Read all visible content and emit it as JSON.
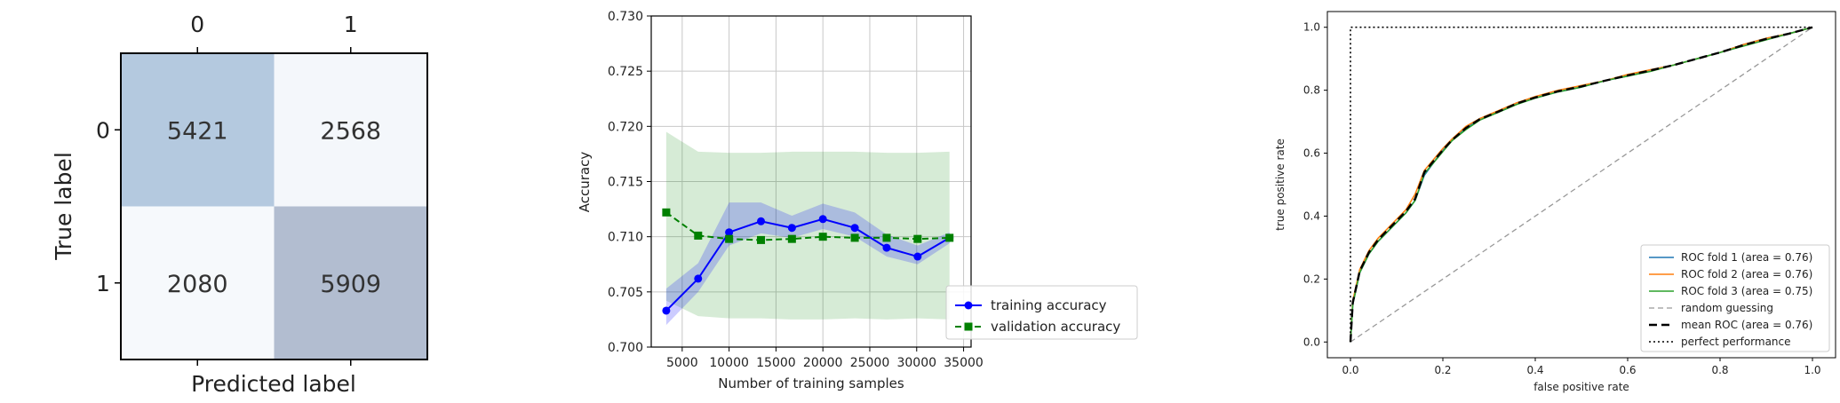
{
  "chart_data": [
    {
      "type": "heatmap",
      "title": "",
      "xlabel": "Predicted label",
      "ylabel": "True label",
      "x_categories": [
        "0",
        "1"
      ],
      "y_categories": [
        "0",
        "1"
      ],
      "values": [
        [
          5421,
          2568
        ],
        [
          2080,
          5909
        ]
      ],
      "colors": [
        "#b4c9df",
        "#f4f7fb",
        "#f6f9fc",
        "#b2bdd0"
      ],
      "grid": false
    },
    {
      "type": "line",
      "title": "",
      "xlabel": "Number of training samples",
      "ylabel": "Accuracy",
      "xlim": [
        1700,
        35800
      ],
      "ylim": [
        0.7,
        0.73
      ],
      "xticks": [
        5000,
        10000,
        15000,
        20000,
        25000,
        30000,
        35000
      ],
      "yticks": [
        0.7,
        0.705,
        0.71,
        0.715,
        0.72,
        0.725,
        0.73
      ],
      "ytick_labels": [
        "0.700",
        "0.705",
        "0.710",
        "0.715",
        "0.720",
        "0.725",
        "0.730"
      ],
      "grid": true,
      "legend_position": "lower-right",
      "x": [
        3300,
        6700,
        10000,
        13400,
        16700,
        20000,
        23400,
        26800,
        30100,
        33500
      ],
      "series": [
        {
          "name": "training accuracy",
          "color": "#0000ff",
          "marker": "circle",
          "linestyle": "solid",
          "values": [
            0.7033,
            0.7062,
            0.7104,
            0.7114,
            0.7108,
            0.7116,
            0.7108,
            0.709,
            0.7082,
            0.7099
          ],
          "band_lower": [
            0.702,
            0.705,
            0.7092,
            0.7103,
            0.7099,
            0.7107,
            0.71,
            0.7082,
            0.7075,
            0.7094
          ],
          "band_upper": [
            0.7053,
            0.7076,
            0.7131,
            0.7131,
            0.7119,
            0.713,
            0.7122,
            0.7102,
            0.7092,
            0.7104
          ]
        },
        {
          "name": "validation accuracy",
          "color": "#008000",
          "marker": "square",
          "linestyle": "dashed",
          "values": [
            0.7122,
            0.7101,
            0.7098,
            0.7097,
            0.7098,
            0.71,
            0.7099,
            0.7099,
            0.7098,
            0.7099
          ],
          "band_lower": [
            0.7042,
            0.7028,
            0.7026,
            0.7026,
            0.7025,
            0.7025,
            0.7026,
            0.7025,
            0.7026,
            0.7025
          ],
          "band_upper": [
            0.7195,
            0.7177,
            0.7176,
            0.7176,
            0.7177,
            0.7177,
            0.7177,
            0.7176,
            0.7176,
            0.7177
          ]
        }
      ]
    },
    {
      "type": "line",
      "title": "",
      "xlabel": "false positive rate",
      "ylabel": "true positive rate",
      "xlim": [
        -0.05,
        1.05
      ],
      "ylim": [
        -0.05,
        1.05
      ],
      "xticks": [
        0.0,
        0.2,
        0.4,
        0.6,
        0.8,
        1.0
      ],
      "yticks": [
        0.0,
        0.2,
        0.4,
        0.6,
        0.8,
        1.0
      ],
      "tick_labels": [
        "0.0",
        "0.2",
        "0.4",
        "0.6",
        "0.8",
        "1.0"
      ],
      "grid": false,
      "legend_position": "lower-right",
      "series": [
        {
          "name": "ROC fold 1 (area = 0.76)",
          "color": "#1f77b4",
          "linestyle": "solid",
          "x": [
            0.0,
            0.005,
            0.02,
            0.04,
            0.06,
            0.08,
            0.1,
            0.12,
            0.14,
            0.16,
            0.18,
            0.2,
            0.22,
            0.25,
            0.28,
            0.32,
            0.36,
            0.4,
            0.45,
            0.5,
            0.55,
            0.6,
            0.65,
            0.7,
            0.75,
            0.8,
            0.85,
            0.9,
            0.95,
            1.0
          ],
          "y": [
            0.0,
            0.12,
            0.22,
            0.28,
            0.32,
            0.35,
            0.38,
            0.41,
            0.45,
            0.53,
            0.57,
            0.61,
            0.64,
            0.68,
            0.71,
            0.73,
            0.76,
            0.775,
            0.795,
            0.81,
            0.83,
            0.845,
            0.865,
            0.88,
            0.9,
            0.92,
            0.945,
            0.965,
            0.98,
            1.0
          ]
        },
        {
          "name": "ROC fold 2 (area = 0.76)",
          "color": "#ff7f0e",
          "linestyle": "solid",
          "x": [
            0.0,
            0.005,
            0.02,
            0.04,
            0.06,
            0.08,
            0.1,
            0.12,
            0.14,
            0.16,
            0.18,
            0.2,
            0.22,
            0.25,
            0.28,
            0.32,
            0.36,
            0.4,
            0.45,
            0.5,
            0.55,
            0.6,
            0.65,
            0.7,
            0.75,
            0.8,
            0.85,
            0.9,
            0.95,
            1.0
          ],
          "y": [
            0.0,
            0.13,
            0.23,
            0.29,
            0.33,
            0.36,
            0.39,
            0.42,
            0.47,
            0.545,
            0.58,
            0.615,
            0.645,
            0.685,
            0.71,
            0.735,
            0.76,
            0.78,
            0.8,
            0.815,
            0.83,
            0.85,
            0.865,
            0.88,
            0.9,
            0.92,
            0.945,
            0.965,
            0.98,
            1.0
          ]
        },
        {
          "name": "ROC fold 3 (area = 0.75)",
          "color": "#2ca02c",
          "linestyle": "solid",
          "x": [
            0.0,
            0.005,
            0.02,
            0.04,
            0.06,
            0.08,
            0.1,
            0.12,
            0.14,
            0.16,
            0.18,
            0.2,
            0.22,
            0.25,
            0.28,
            0.32,
            0.36,
            0.4,
            0.45,
            0.5,
            0.55,
            0.6,
            0.65,
            0.7,
            0.75,
            0.8,
            0.85,
            0.9,
            0.95,
            1.0
          ],
          "y": [
            0.0,
            0.12,
            0.22,
            0.28,
            0.32,
            0.35,
            0.38,
            0.41,
            0.45,
            0.535,
            0.57,
            0.605,
            0.64,
            0.675,
            0.705,
            0.73,
            0.755,
            0.775,
            0.795,
            0.81,
            0.83,
            0.845,
            0.86,
            0.88,
            0.9,
            0.92,
            0.94,
            0.96,
            0.98,
            1.0
          ]
        },
        {
          "name": "random guessing",
          "color": "#999999",
          "linestyle": "dashed",
          "x": [
            0.0,
            1.0
          ],
          "y": [
            0.0,
            1.0
          ]
        },
        {
          "name": "mean ROC (area = 0.76)",
          "color": "#000000",
          "linestyle": "dashed-bold",
          "x": [
            0.0,
            0.005,
            0.02,
            0.04,
            0.06,
            0.08,
            0.1,
            0.12,
            0.14,
            0.16,
            0.18,
            0.2,
            0.22,
            0.25,
            0.28,
            0.32,
            0.36,
            0.4,
            0.45,
            0.5,
            0.55,
            0.6,
            0.65,
            0.7,
            0.75,
            0.8,
            0.85,
            0.9,
            0.95,
            1.0
          ],
          "y": [
            0.0,
            0.125,
            0.225,
            0.285,
            0.325,
            0.355,
            0.385,
            0.415,
            0.455,
            0.54,
            0.575,
            0.61,
            0.642,
            0.68,
            0.708,
            0.732,
            0.758,
            0.777,
            0.797,
            0.812,
            0.83,
            0.847,
            0.863,
            0.88,
            0.9,
            0.92,
            0.943,
            0.963,
            0.98,
            1.0
          ]
        },
        {
          "name": "perfect performance",
          "color": "#000000",
          "linestyle": "dotted",
          "x": [
            0.0,
            0.0,
            1.0
          ],
          "y": [
            0.0,
            1.0,
            1.0
          ]
        }
      ]
    }
  ]
}
